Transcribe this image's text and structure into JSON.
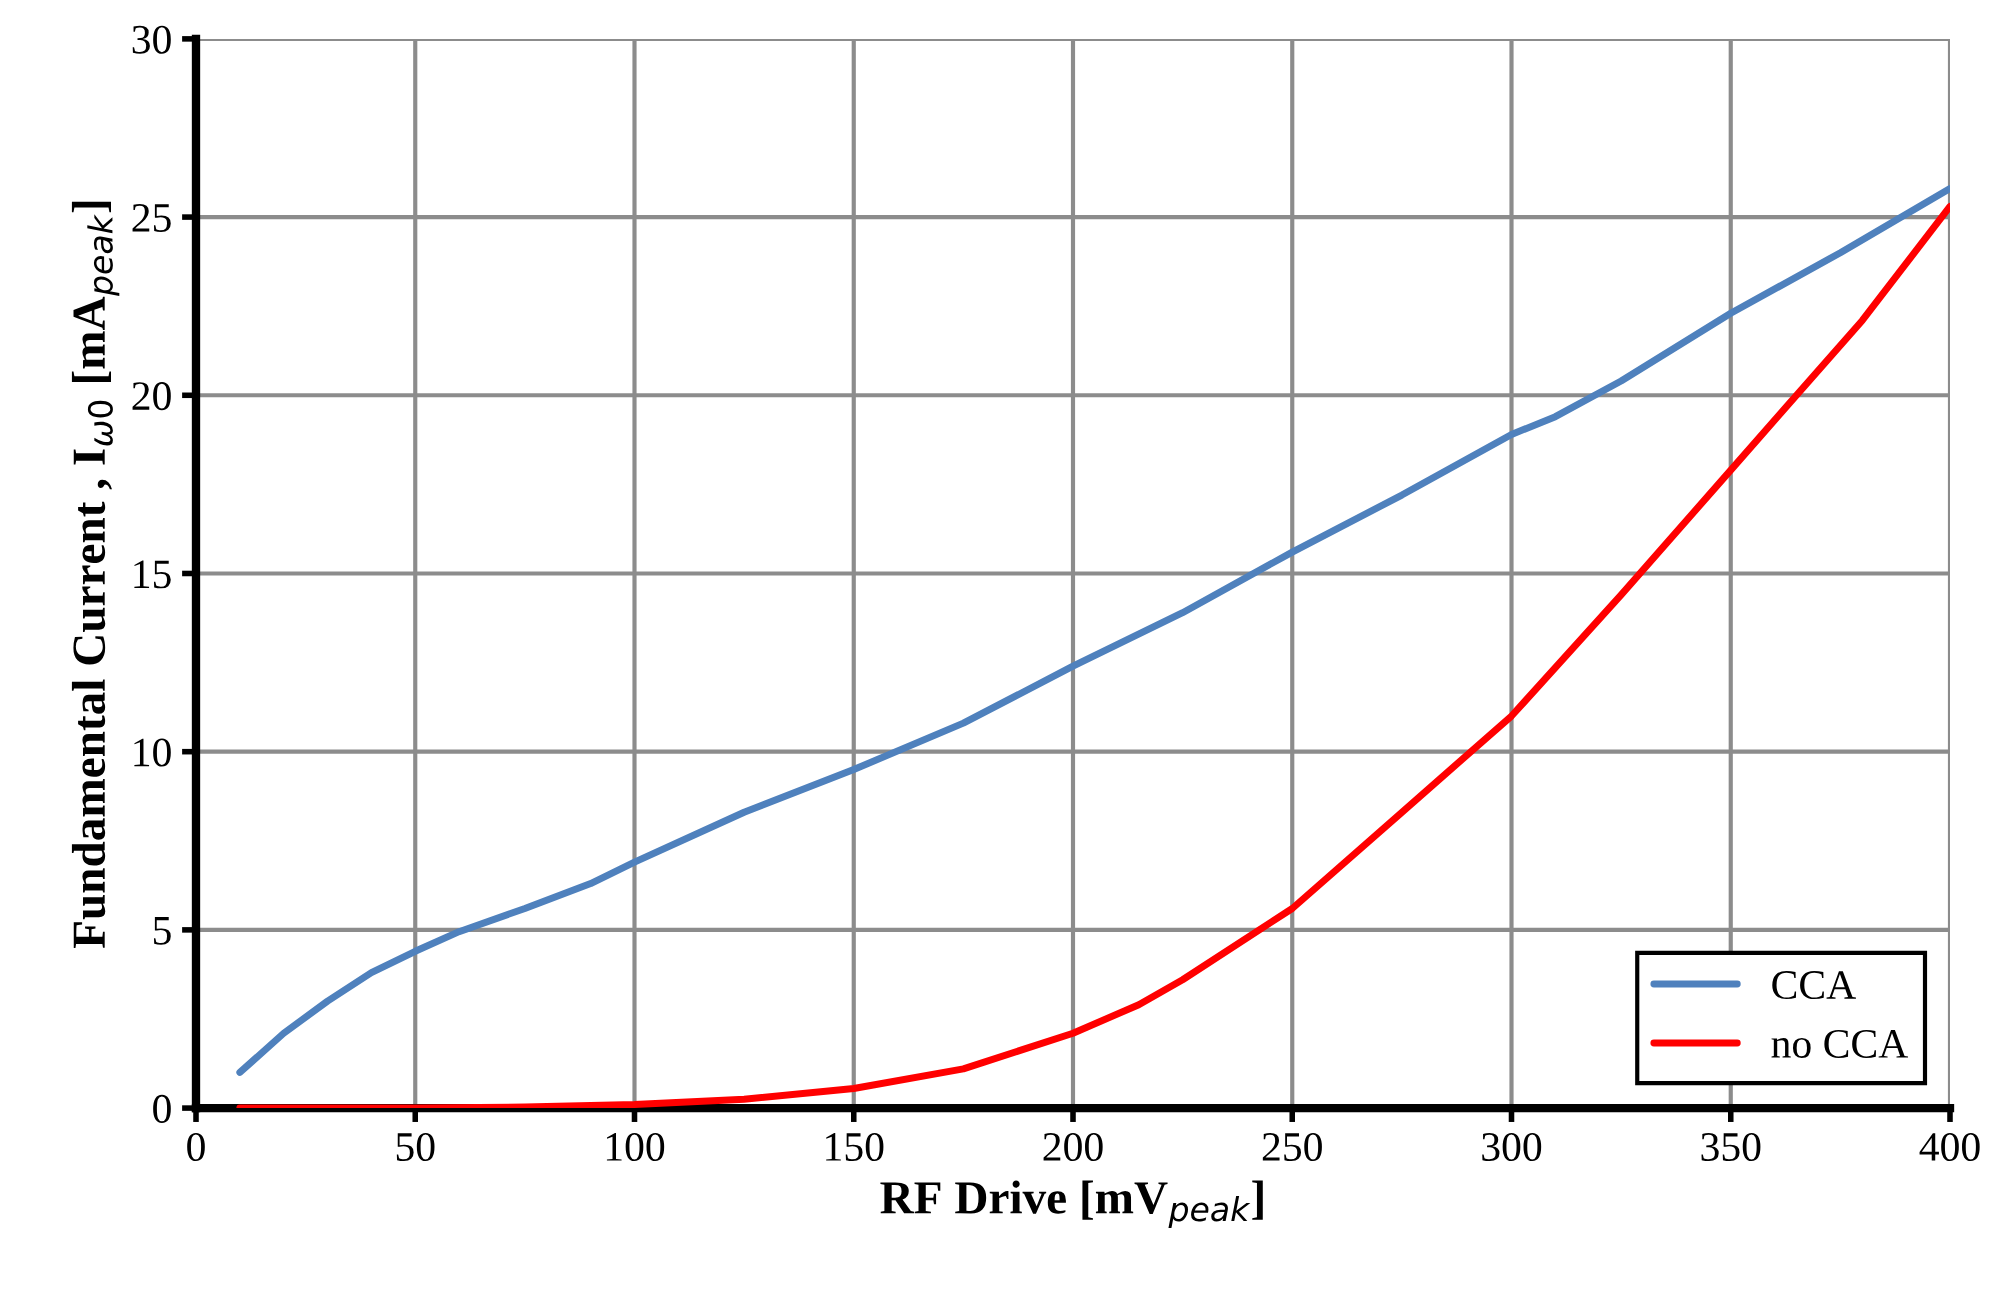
{
  "chart_data": {
    "type": "line",
    "xlabel": "RF Drive [mV$_{peak}$]",
    "ylabel": "Fundamental Current , I$_{ω0}$ [mA$_{peak}$]",
    "xlim": [
      0,
      400
    ],
    "xticks": [
      0,
      50,
      100,
      150,
      200,
      250,
      300,
      350,
      400
    ],
    "ylim": [
      0,
      30
    ],
    "yticks": [
      0,
      5,
      10,
      15,
      20,
      25,
      30
    ],
    "grid": true,
    "legend": "bottom right",
    "marker": "none",
    "line_style": "solid",
    "series": [
      {
        "name": "CCA",
        "color": "#4f81bd",
        "x": [
          10,
          20,
          30,
          40,
          50,
          60,
          75,
          90,
          100,
          125,
          150,
          175,
          200,
          225,
          250,
          275,
          300,
          310,
          325,
          350,
          375,
          400
        ],
        "values": [
          1.0,
          2.1,
          3.0,
          3.8,
          4.4,
          4.95,
          5.6,
          6.3,
          6.9,
          8.3,
          9.5,
          10.8,
          12.4,
          13.9,
          15.6,
          17.2,
          18.9,
          19.4,
          20.4,
          22.3,
          24.0,
          25.8
        ]
      },
      {
        "name": "no CCA",
        "color": "#ff0000",
        "x": [
          10,
          50,
          75,
          100,
          125,
          150,
          175,
          200,
          215,
          225,
          250,
          275,
          300,
          325,
          350,
          380,
          400
        ],
        "values": [
          0,
          0,
          0.03,
          0.1,
          0.25,
          0.55,
          1.1,
          2.1,
          2.9,
          3.6,
          5.6,
          8.3,
          11.0,
          14.4,
          17.9,
          22.1,
          25.3
        ]
      }
    ]
  }
}
